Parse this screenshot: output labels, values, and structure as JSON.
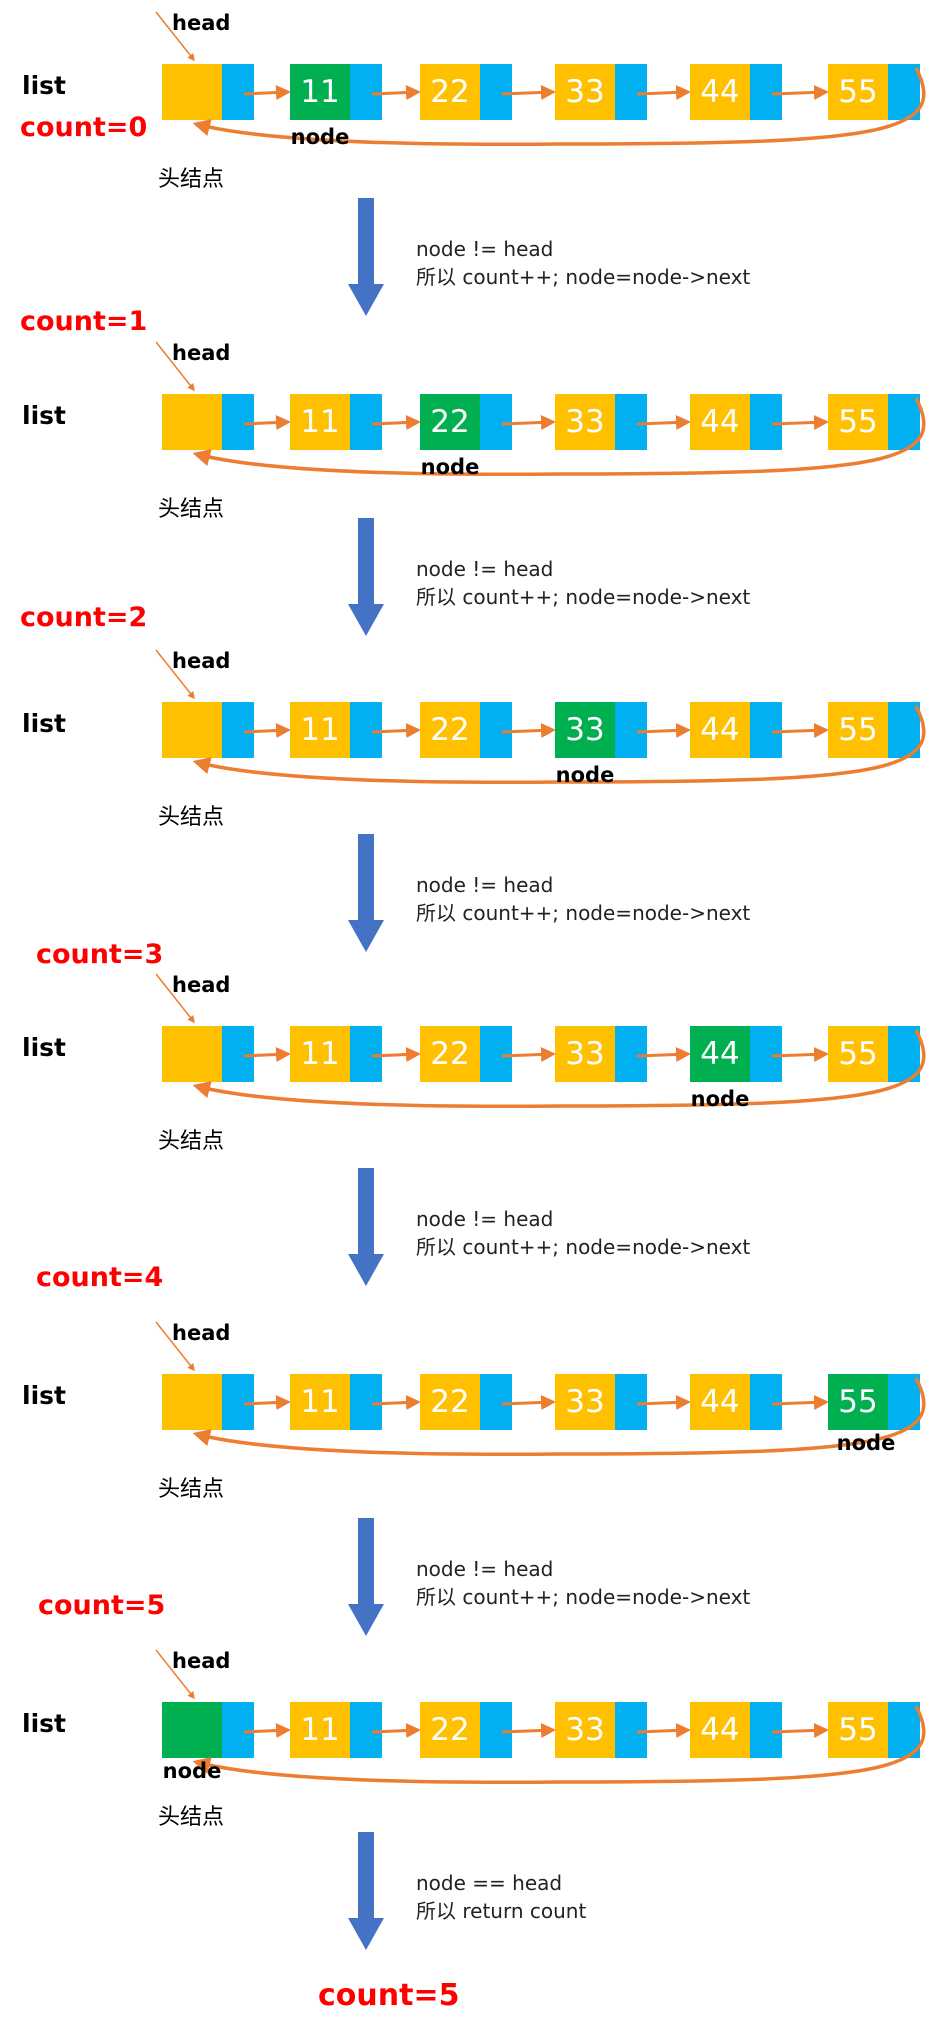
{
  "colors": {
    "yellow": "#FFC000",
    "blue": "#00B0F0",
    "green": "#00B050",
    "orange": "#ED7D31",
    "red": "#FF0000",
    "arrow_blue": "#4472C4",
    "text": "#000000",
    "note": "#222222"
  },
  "labels": {
    "head": "head",
    "list": "list",
    "node": "node",
    "head_node": "头结点"
  },
  "node_values": [
    "11",
    "22",
    "33",
    "44",
    "55"
  ],
  "steps": [
    {
      "count_label": "count=0",
      "highlight": 1
    },
    {
      "count_label": "count=1",
      "highlight": 2
    },
    {
      "count_label": "count=2",
      "highlight": 3
    },
    {
      "count_label": "count=3",
      "highlight": 4
    },
    {
      "count_label": "count=4",
      "highlight": 5
    },
    {
      "count_label": "count=5",
      "highlight": 0
    }
  ],
  "transitions": [
    {
      "line1": "node != head",
      "line2": "所以 count++; node=node->next"
    },
    {
      "line1": "node != head",
      "line2": "所以 count++; node=node->next"
    },
    {
      "line1": "node != head",
      "line2": "所以 count++; node=node->next"
    },
    {
      "line1": "node != head",
      "line2": "所以 count++; node=node->next"
    },
    {
      "line1": "node != head",
      "line2": "所以 count++; node=node->next"
    },
    {
      "line1": "node == head",
      "line2": "所以 return count"
    }
  ],
  "result_label": "count=5"
}
